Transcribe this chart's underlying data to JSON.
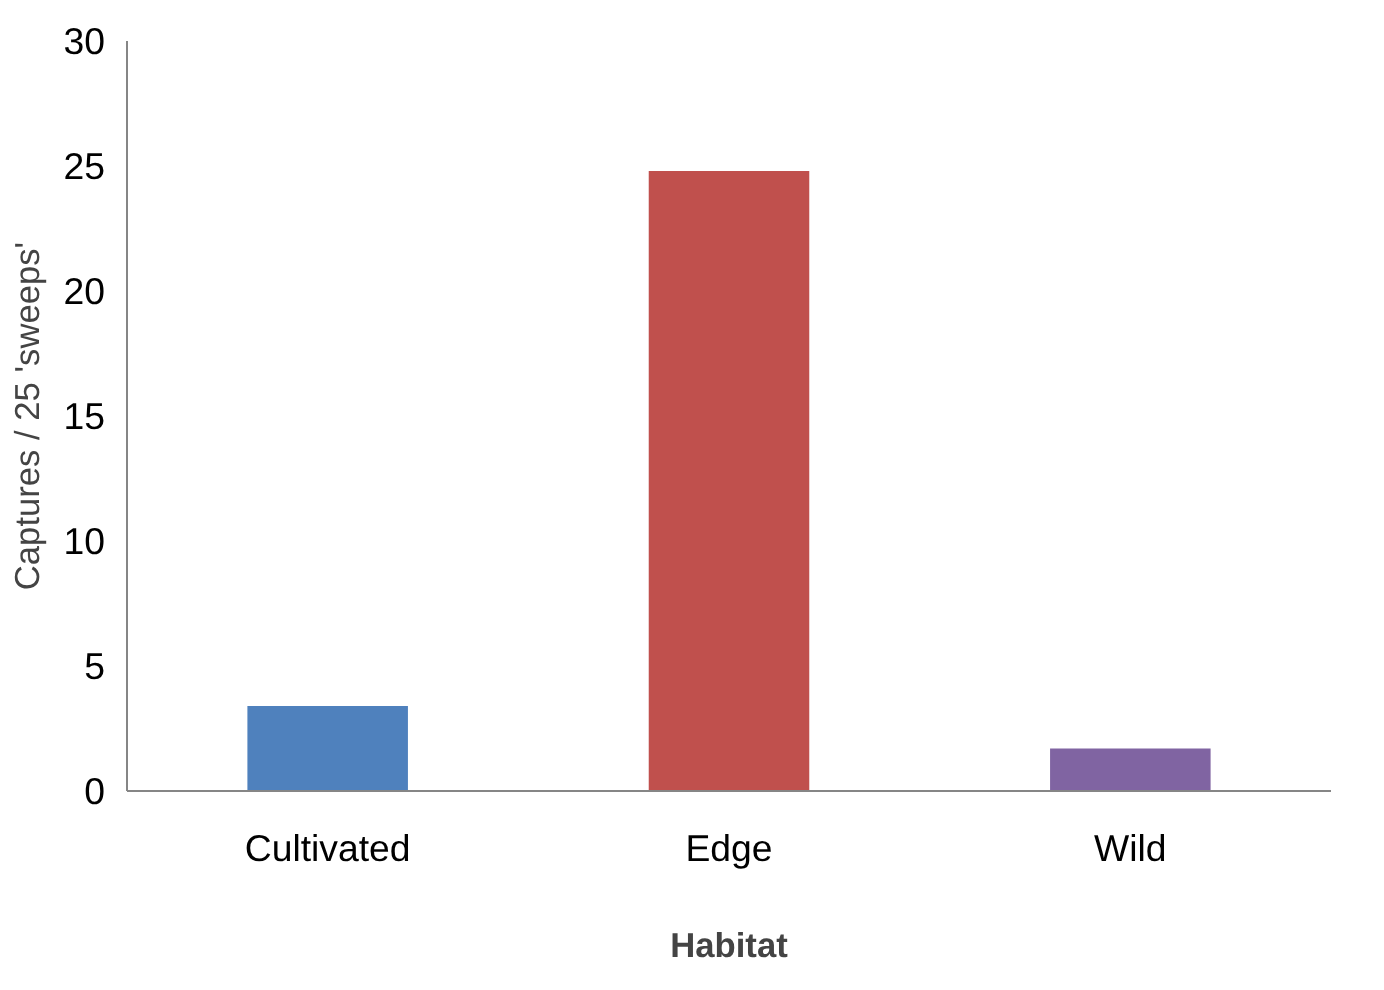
{
  "chart_data": {
    "type": "bar",
    "xlabel": "Habitat",
    "ylabel": "Captures / 25 'sweeps'",
    "categories": [
      "Cultivated",
      "Edge",
      "Wild"
    ],
    "values": [
      3.4,
      24.8,
      1.7
    ],
    "colors": [
      "#4f81bd",
      "#c0504d",
      "#8064a2"
    ],
    "ylim": [
      0,
      30
    ],
    "yticks": [
      0,
      5,
      10,
      15,
      20,
      25,
      30
    ],
    "grid": false
  }
}
